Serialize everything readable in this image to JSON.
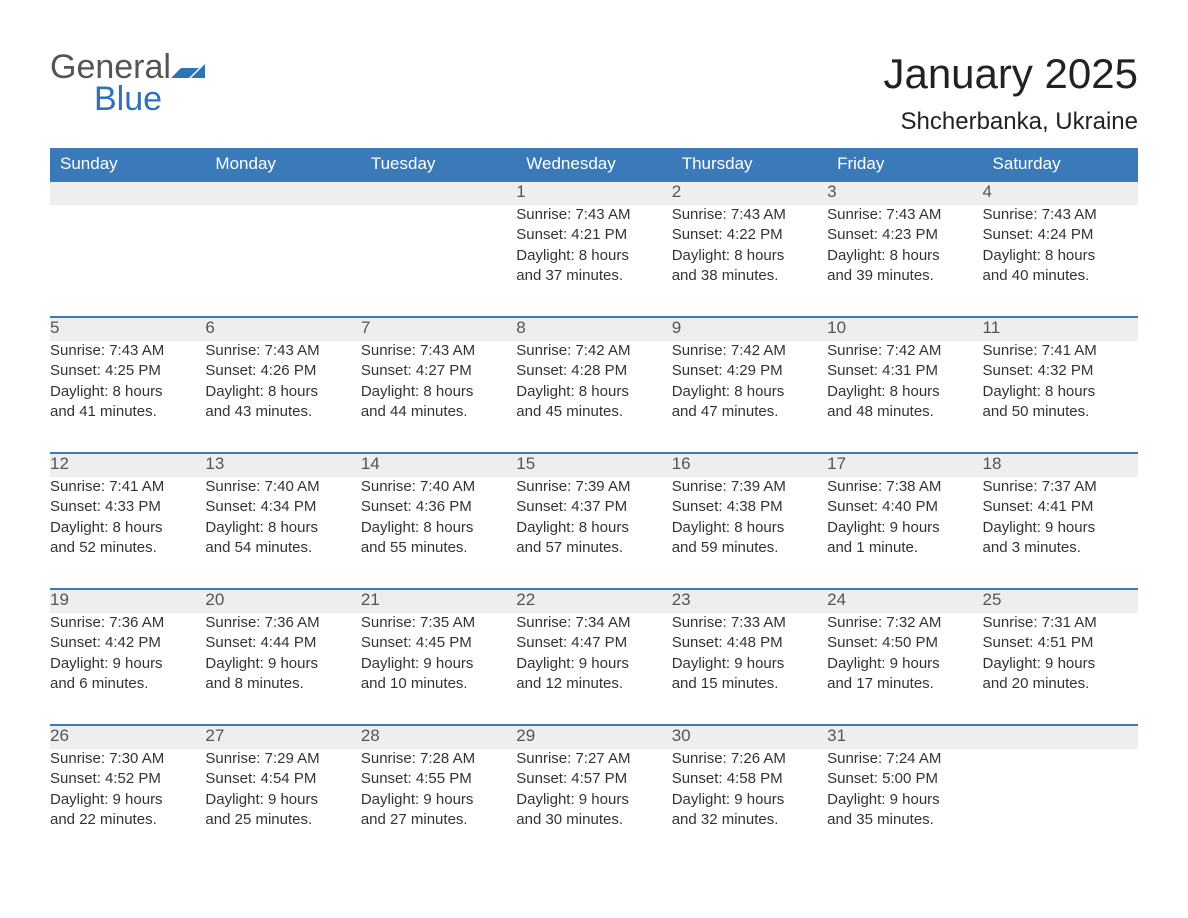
{
  "brand": {
    "word1": "General",
    "word2": "Blue",
    "color_general": "#555555",
    "color_blue": "#2f72b8",
    "flag_color": "#2f72b8"
  },
  "header": {
    "title": "January 2025",
    "location": "Shcherbanka, Ukraine"
  },
  "style": {
    "header_bg": "#3a7ab8",
    "header_text": "#ffffff",
    "daynum_bg": "#eeeeee",
    "daynum_border": "#3a7ab8",
    "body_text": "#333333",
    "daynum_text": "#555555",
    "page_bg": "#ffffff",
    "title_fontsize": 42,
    "location_fontsize": 24,
    "th_fontsize": 17,
    "cell_fontsize": 15
  },
  "days_of_week": [
    "Sunday",
    "Monday",
    "Tuesday",
    "Wednesday",
    "Thursday",
    "Friday",
    "Saturday"
  ],
  "weeks": [
    [
      null,
      null,
      null,
      {
        "n": "1",
        "sunrise": "Sunrise: 7:43 AM",
        "sunset": "Sunset: 4:21 PM",
        "day1": "Daylight: 8 hours",
        "day2": "and 37 minutes."
      },
      {
        "n": "2",
        "sunrise": "Sunrise: 7:43 AM",
        "sunset": "Sunset: 4:22 PM",
        "day1": "Daylight: 8 hours",
        "day2": "and 38 minutes."
      },
      {
        "n": "3",
        "sunrise": "Sunrise: 7:43 AM",
        "sunset": "Sunset: 4:23 PM",
        "day1": "Daylight: 8 hours",
        "day2": "and 39 minutes."
      },
      {
        "n": "4",
        "sunrise": "Sunrise: 7:43 AM",
        "sunset": "Sunset: 4:24 PM",
        "day1": "Daylight: 8 hours",
        "day2": "and 40 minutes."
      }
    ],
    [
      {
        "n": "5",
        "sunrise": "Sunrise: 7:43 AM",
        "sunset": "Sunset: 4:25 PM",
        "day1": "Daylight: 8 hours",
        "day2": "and 41 minutes."
      },
      {
        "n": "6",
        "sunrise": "Sunrise: 7:43 AM",
        "sunset": "Sunset: 4:26 PM",
        "day1": "Daylight: 8 hours",
        "day2": "and 43 minutes."
      },
      {
        "n": "7",
        "sunrise": "Sunrise: 7:43 AM",
        "sunset": "Sunset: 4:27 PM",
        "day1": "Daylight: 8 hours",
        "day2": "and 44 minutes."
      },
      {
        "n": "8",
        "sunrise": "Sunrise: 7:42 AM",
        "sunset": "Sunset: 4:28 PM",
        "day1": "Daylight: 8 hours",
        "day2": "and 45 minutes."
      },
      {
        "n": "9",
        "sunrise": "Sunrise: 7:42 AM",
        "sunset": "Sunset: 4:29 PM",
        "day1": "Daylight: 8 hours",
        "day2": "and 47 minutes."
      },
      {
        "n": "10",
        "sunrise": "Sunrise: 7:42 AM",
        "sunset": "Sunset: 4:31 PM",
        "day1": "Daylight: 8 hours",
        "day2": "and 48 minutes."
      },
      {
        "n": "11",
        "sunrise": "Sunrise: 7:41 AM",
        "sunset": "Sunset: 4:32 PM",
        "day1": "Daylight: 8 hours",
        "day2": "and 50 minutes."
      }
    ],
    [
      {
        "n": "12",
        "sunrise": "Sunrise: 7:41 AM",
        "sunset": "Sunset: 4:33 PM",
        "day1": "Daylight: 8 hours",
        "day2": "and 52 minutes."
      },
      {
        "n": "13",
        "sunrise": "Sunrise: 7:40 AM",
        "sunset": "Sunset: 4:34 PM",
        "day1": "Daylight: 8 hours",
        "day2": "and 54 minutes."
      },
      {
        "n": "14",
        "sunrise": "Sunrise: 7:40 AM",
        "sunset": "Sunset: 4:36 PM",
        "day1": "Daylight: 8 hours",
        "day2": "and 55 minutes."
      },
      {
        "n": "15",
        "sunrise": "Sunrise: 7:39 AM",
        "sunset": "Sunset: 4:37 PM",
        "day1": "Daylight: 8 hours",
        "day2": "and 57 minutes."
      },
      {
        "n": "16",
        "sunrise": "Sunrise: 7:39 AM",
        "sunset": "Sunset: 4:38 PM",
        "day1": "Daylight: 8 hours",
        "day2": "and 59 minutes."
      },
      {
        "n": "17",
        "sunrise": "Sunrise: 7:38 AM",
        "sunset": "Sunset: 4:40 PM",
        "day1": "Daylight: 9 hours",
        "day2": "and 1 minute."
      },
      {
        "n": "18",
        "sunrise": "Sunrise: 7:37 AM",
        "sunset": "Sunset: 4:41 PM",
        "day1": "Daylight: 9 hours",
        "day2": "and 3 minutes."
      }
    ],
    [
      {
        "n": "19",
        "sunrise": "Sunrise: 7:36 AM",
        "sunset": "Sunset: 4:42 PM",
        "day1": "Daylight: 9 hours",
        "day2": "and 6 minutes."
      },
      {
        "n": "20",
        "sunrise": "Sunrise: 7:36 AM",
        "sunset": "Sunset: 4:44 PM",
        "day1": "Daylight: 9 hours",
        "day2": "and 8 minutes."
      },
      {
        "n": "21",
        "sunrise": "Sunrise: 7:35 AM",
        "sunset": "Sunset: 4:45 PM",
        "day1": "Daylight: 9 hours",
        "day2": "and 10 minutes."
      },
      {
        "n": "22",
        "sunrise": "Sunrise: 7:34 AM",
        "sunset": "Sunset: 4:47 PM",
        "day1": "Daylight: 9 hours",
        "day2": "and 12 minutes."
      },
      {
        "n": "23",
        "sunrise": "Sunrise: 7:33 AM",
        "sunset": "Sunset: 4:48 PM",
        "day1": "Daylight: 9 hours",
        "day2": "and 15 minutes."
      },
      {
        "n": "24",
        "sunrise": "Sunrise: 7:32 AM",
        "sunset": "Sunset: 4:50 PM",
        "day1": "Daylight: 9 hours",
        "day2": "and 17 minutes."
      },
      {
        "n": "25",
        "sunrise": "Sunrise: 7:31 AM",
        "sunset": "Sunset: 4:51 PM",
        "day1": "Daylight: 9 hours",
        "day2": "and 20 minutes."
      }
    ],
    [
      {
        "n": "26",
        "sunrise": "Sunrise: 7:30 AM",
        "sunset": "Sunset: 4:52 PM",
        "day1": "Daylight: 9 hours",
        "day2": "and 22 minutes."
      },
      {
        "n": "27",
        "sunrise": "Sunrise: 7:29 AM",
        "sunset": "Sunset: 4:54 PM",
        "day1": "Daylight: 9 hours",
        "day2": "and 25 minutes."
      },
      {
        "n": "28",
        "sunrise": "Sunrise: 7:28 AM",
        "sunset": "Sunset: 4:55 PM",
        "day1": "Daylight: 9 hours",
        "day2": "and 27 minutes."
      },
      {
        "n": "29",
        "sunrise": "Sunrise: 7:27 AM",
        "sunset": "Sunset: 4:57 PM",
        "day1": "Daylight: 9 hours",
        "day2": "and 30 minutes."
      },
      {
        "n": "30",
        "sunrise": "Sunrise: 7:26 AM",
        "sunset": "Sunset: 4:58 PM",
        "day1": "Daylight: 9 hours",
        "day2": "and 32 minutes."
      },
      {
        "n": "31",
        "sunrise": "Sunrise: 7:24 AM",
        "sunset": "Sunset: 5:00 PM",
        "day1": "Daylight: 9 hours",
        "day2": "and 35 minutes."
      },
      null
    ]
  ]
}
